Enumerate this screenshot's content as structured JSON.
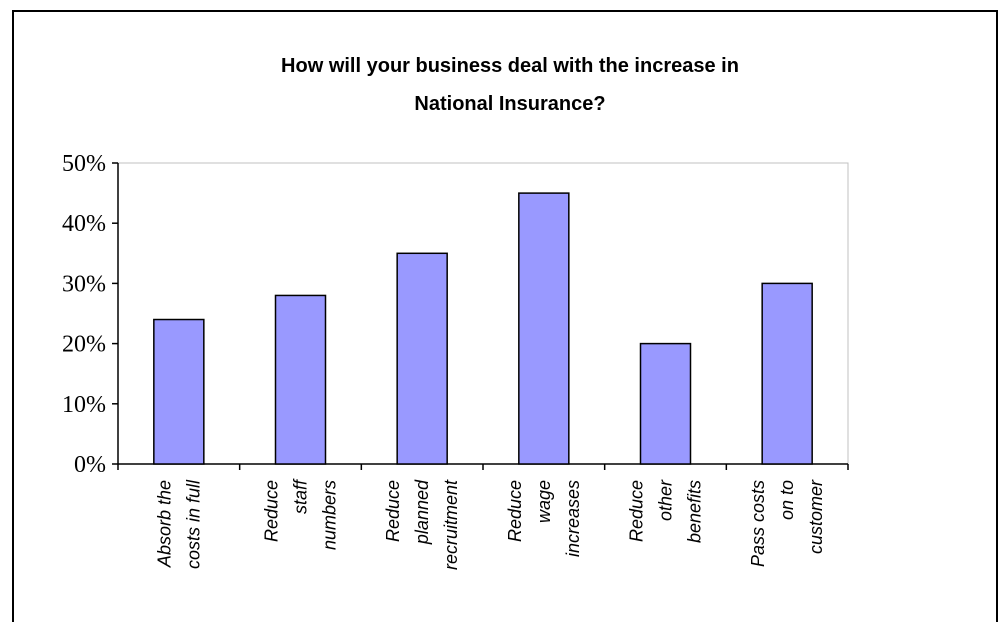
{
  "chart_data": {
    "type": "bar",
    "title": [
      "How will your business deal with the increase in",
      "National Insurance?"
    ],
    "categories": [
      [
        "Absorb the",
        "costs in full"
      ],
      [
        "Reduce",
        "staff",
        "numbers"
      ],
      [
        "Reduce",
        "planned",
        "recruitment"
      ],
      [
        "Reduce",
        "wage",
        "increases"
      ],
      [
        "Reduce",
        "other",
        "benefits"
      ],
      [
        "Pass costs",
        "on to",
        "customer"
      ]
    ],
    "values": [
      24,
      28,
      35,
      45,
      20,
      30
    ],
    "ylim": [
      0,
      50
    ],
    "yticks": [
      "0%",
      "10%",
      "20%",
      "30%",
      "40%",
      "50%"
    ],
    "xlabel": "",
    "ylabel": "",
    "grid": false,
    "colors": {
      "bar_fill": "#9999ff",
      "bar_stroke": "#000000",
      "axis": "#000000",
      "plot_border": "#c0c0c0"
    }
  }
}
